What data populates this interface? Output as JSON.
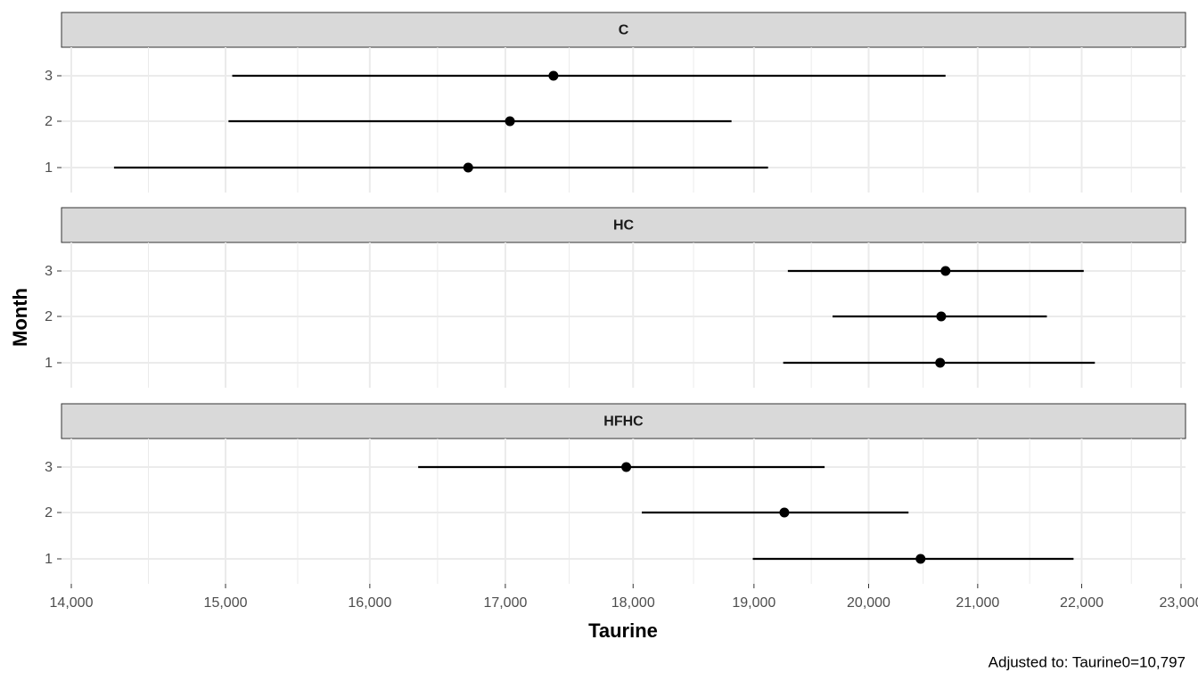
{
  "chart_data": {
    "type": "dot-whisker",
    "xlabel": "Taurine",
    "ylabel": "Month",
    "caption": "Adjusted to: Taurine0=10,797",
    "xlim": [
      14000,
      23000
    ],
    "xscale": "log",
    "grid": true,
    "xticks": [
      {
        "value": 14000,
        "label": "14,000"
      },
      {
        "value": 15000,
        "label": "15,000"
      },
      {
        "value": 16000,
        "label": "16,000"
      },
      {
        "value": 17000,
        "label": "17,000"
      },
      {
        "value": 18000,
        "label": "18,000"
      },
      {
        "value": 19000,
        "label": "19,000"
      },
      {
        "value": 20000,
        "label": "20,000"
      },
      {
        "value": 21000,
        "label": "21,000"
      },
      {
        "value": 22000,
        "label": "22,000"
      },
      {
        "value": 23000,
        "label": "23,000"
      }
    ],
    "categories": [
      "1",
      "2",
      "3"
    ],
    "color": "#000000",
    "facets": [
      {
        "title": "C",
        "values": [
          16720,
          17035,
          17370
        ],
        "low": [
          14270,
          15020,
          15045
        ],
        "high": [
          19120,
          18810,
          20700
        ]
      },
      {
        "title": "HC",
        "values": [
          20650,
          20660,
          20700
        ],
        "low": [
          19250,
          19680,
          19290
        ],
        "high": [
          22130,
          21660,
          22020
        ]
      },
      {
        "title": "HFHC",
        "values": [
          20470,
          19260,
          17945
        ],
        "low": [
          18990,
          18070,
          16350
        ],
        "high": [
          21920,
          20360,
          19610
        ]
      }
    ]
  }
}
